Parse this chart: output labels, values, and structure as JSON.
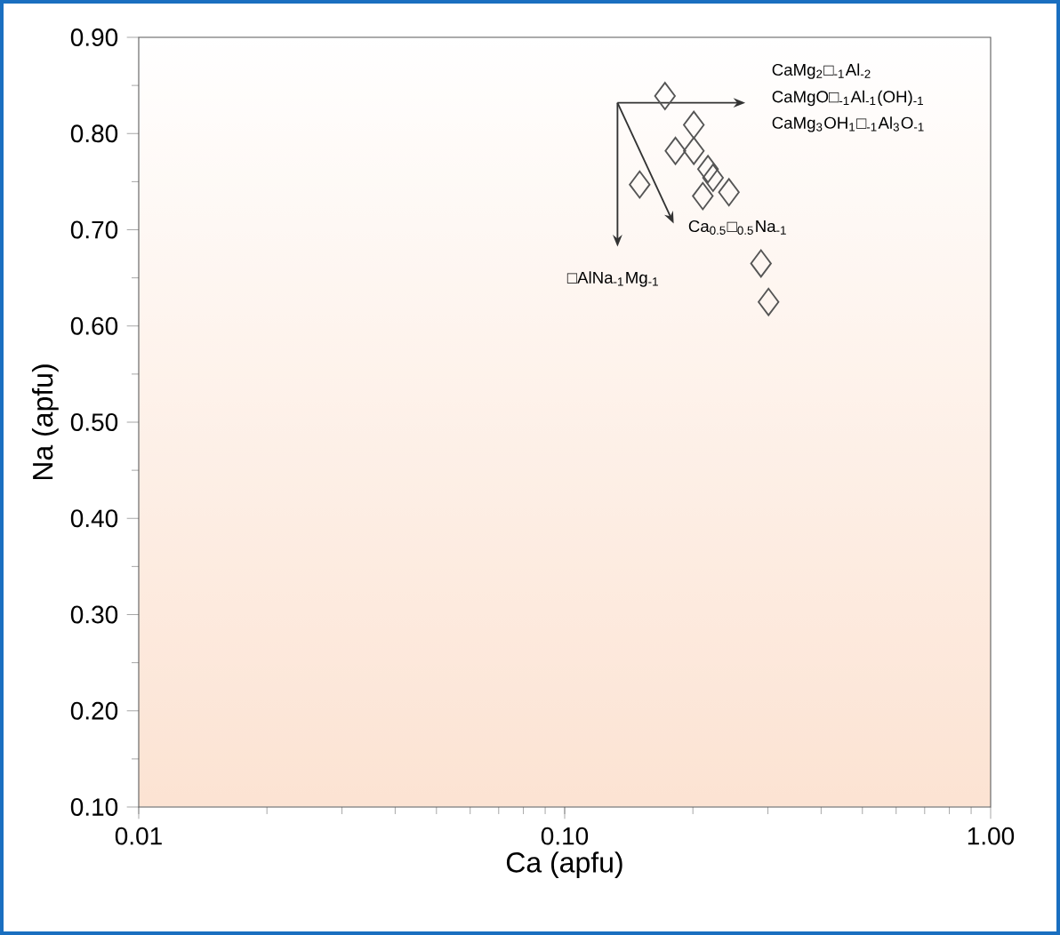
{
  "chart_data": {
    "type": "scatter",
    "xlabel": "Ca (apfu)",
    "ylabel": "Na (apfu)",
    "log": "x",
    "marker": "diamond",
    "xlim": [
      0.01,
      1
    ],
    "ylim": [
      0.1,
      0.9
    ],
    "xticks": [
      {
        "value": 0.01,
        "label": "0.01"
      },
      {
        "value": 0.1,
        "label": "0.10"
      },
      {
        "value": 1,
        "label": "1.00"
      }
    ],
    "yticks": [
      {
        "value": 0.1,
        "label": "0.10"
      },
      {
        "value": 0.2,
        "label": "0.20"
      },
      {
        "value": 0.3,
        "label": "0.30"
      },
      {
        "value": 0.4,
        "label": "0.40"
      },
      {
        "value": 0.5,
        "label": "0.50"
      },
      {
        "value": 0.6,
        "label": "0.60"
      },
      {
        "value": 0.7,
        "label": "0.70"
      },
      {
        "value": 0.8,
        "label": "0.80"
      },
      {
        "value": 0.9,
        "label": "0.90"
      }
    ],
    "grid": false,
    "series": [
      {
        "color": "#555555",
        "x": [
          0.172,
          0.201,
          0.182,
          0.201,
          0.217,
          0.15,
          0.223,
          0.211,
          0.243,
          0.289,
          0.301
        ],
        "values": [
          0.839,
          0.809,
          0.782,
          0.782,
          0.763,
          0.747,
          0.754,
          0.735,
          0.739,
          0.665,
          0.625
        ]
      }
    ],
    "annotations": [
      "CaMg$_{2}$□$_{-1}$Al$_{-2}$",
      "CaMgO□$_{-1}$Al$_{-1}$(OH)$_{-1}$",
      "CaMg$_{3}$OH$_{1}$□$_{-1}$Al$_{3}$O$_{-1}$",
      "Ca$_{0.5}$□$_{0.5}$Na$_{-1}$",
      "□AlNa$_{-1}$Mg$_{-1}$"
    ]
  }
}
